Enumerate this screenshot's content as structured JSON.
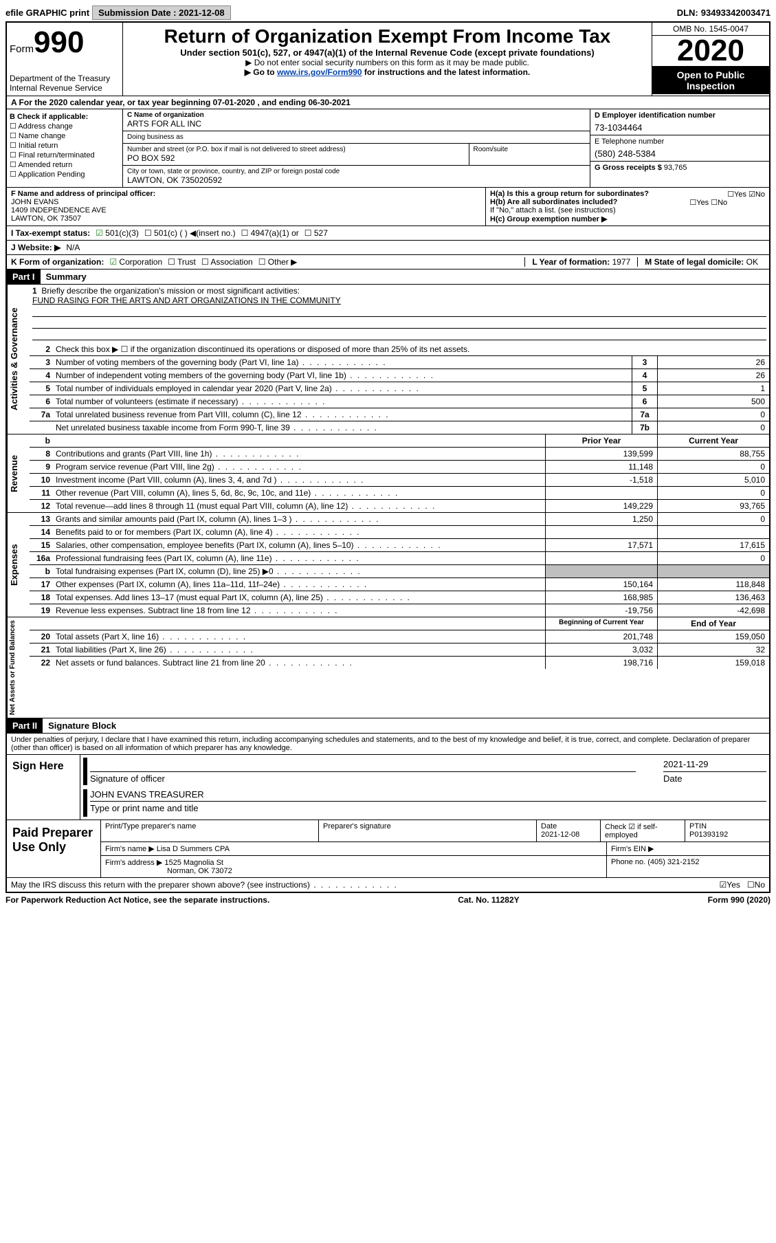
{
  "topbar": {
    "efile": "efile GRAPHIC print",
    "submission_label": "Submission Date :",
    "submission_date": "2021-12-08",
    "dln_label": "DLN:",
    "dln": "93493342003471"
  },
  "header": {
    "form_label": "Form",
    "form_number": "990",
    "dept1": "Department of the Treasury",
    "dept2": "Internal Revenue Service",
    "title": "Return of Organization Exempt From Income Tax",
    "subtitle": "Under section 501(c), 527, or 4947(a)(1) of the Internal Revenue Code (except private foundations)",
    "note1": "▶ Do not enter social security numbers on this form as it may be made public.",
    "note2_pre": "▶ Go to ",
    "note2_link": "www.irs.gov/Form990",
    "note2_post": " for instructions and the latest information.",
    "omb": "OMB No. 1545-0047",
    "year": "2020",
    "inspect1": "Open to Public",
    "inspect2": "Inspection"
  },
  "line_a": "A For the 2020 calendar year, or tax year beginning 07-01-2020    , and ending 06-30-2021",
  "box_b": {
    "label": "B Check if applicable:",
    "items": [
      "Address change",
      "Name change",
      "Initial return",
      "Final return/terminated",
      "Amended return",
      "Application Pending"
    ]
  },
  "box_c": {
    "name_label": "C Name of organization",
    "name": "ARTS FOR ALL INC",
    "dba_label": "Doing business as",
    "dba": "",
    "street_label": "Number and street (or P.O. box if mail is not delivered to street address)",
    "street": "PO BOX 592",
    "room_label": "Room/suite",
    "city_label": "City or town, state or province, country, and ZIP or foreign postal code",
    "city": "LAWTON, OK  735020592"
  },
  "box_d": {
    "ein_label": "D Employer identification number",
    "ein": "73-1034464",
    "phone_label": "E Telephone number",
    "phone": "(580) 248-5384",
    "gross_label": "G Gross receipts $",
    "gross": "93,765"
  },
  "box_f": {
    "label": "F Name and address of principal officer:",
    "name": "JOHN EVANS",
    "addr1": "1409 INDEPENDENCE AVE",
    "addr2": "LAWTON, OK  73507"
  },
  "box_h": {
    "a_label": "H(a)  Is this a group return for subordinates?",
    "a_yes": "☐Yes",
    "a_no": "☑No",
    "b_label": "H(b)  Are all subordinates included?",
    "b_yes": "☐Yes",
    "b_no": "☐No",
    "b_note": "If \"No,\" attach a list. (see instructions)",
    "c_label": "H(c)  Group exemption number ▶"
  },
  "row_i": {
    "label": "I    Tax-exempt status:",
    "opt1": "501(c)(3)",
    "opt2": "501(c) (  ) ◀(insert no.)",
    "opt3": "4947(a)(1) or",
    "opt4": "527"
  },
  "row_j": {
    "label": "J   Website: ▶",
    "value": "N/A"
  },
  "row_k": {
    "label": "K Form of organization:",
    "opts": [
      "Corporation",
      "Trust",
      "Association",
      "Other ▶"
    ],
    "l_label": "L Year of formation:",
    "l_val": "1977",
    "m_label": "M State of legal domicile:",
    "m_val": "OK"
  },
  "part1": {
    "header": "Part I",
    "title": "Summary"
  },
  "mission": {
    "num": "1",
    "label": "Briefly describe the organization's mission or most significant activities:",
    "text": "FUND RASING FOR THE ARTS AND ART ORGANIZATIONS IN THE COMMUNITY"
  },
  "governance_rows": [
    {
      "num": "2",
      "desc": "Check this box ▶ ☐  if the organization discontinued its operations or disposed of more than 25% of its net assets.",
      "box": "",
      "val": ""
    },
    {
      "num": "3",
      "desc": "Number of voting members of the governing body (Part VI, line 1a)",
      "box": "3",
      "val": "26"
    },
    {
      "num": "4",
      "desc": "Number of independent voting members of the governing body (Part VI, line 1b)",
      "box": "4",
      "val": "26"
    },
    {
      "num": "5",
      "desc": "Total number of individuals employed in calendar year 2020 (Part V, line 2a)",
      "box": "5",
      "val": "1"
    },
    {
      "num": "6",
      "desc": "Total number of volunteers (estimate if necessary)",
      "box": "6",
      "val": "500"
    },
    {
      "num": "7a",
      "desc": "Total unrelated business revenue from Part VIII, column (C), line 12",
      "box": "7a",
      "val": "0"
    },
    {
      "num": "",
      "desc": "Net unrelated business taxable income from Form 990-T, line 39",
      "box": "7b",
      "val": "0"
    }
  ],
  "revenue_header": {
    "num": "b",
    "prior": "Prior Year",
    "current": "Current Year"
  },
  "revenue_rows": [
    {
      "num": "8",
      "desc": "Contributions and grants (Part VIII, line 1h)",
      "prior": "139,599",
      "current": "88,755"
    },
    {
      "num": "9",
      "desc": "Program service revenue (Part VIII, line 2g)",
      "prior": "11,148",
      "current": "0"
    },
    {
      "num": "10",
      "desc": "Investment income (Part VIII, column (A), lines 3, 4, and 7d )",
      "prior": "-1,518",
      "current": "5,010"
    },
    {
      "num": "11",
      "desc": "Other revenue (Part VIII, column (A), lines 5, 6d, 8c, 9c, 10c, and 11e)",
      "prior": "",
      "current": "0"
    },
    {
      "num": "12",
      "desc": "Total revenue—add lines 8 through 11 (must equal Part VIII, column (A), line 12)",
      "prior": "149,229",
      "current": "93,765"
    }
  ],
  "expense_rows": [
    {
      "num": "13",
      "desc": "Grants and similar amounts paid (Part IX, column (A), lines 1–3 )",
      "prior": "1,250",
      "current": "0"
    },
    {
      "num": "14",
      "desc": "Benefits paid to or for members (Part IX, column (A), line 4)",
      "prior": "",
      "current": ""
    },
    {
      "num": "15",
      "desc": "Salaries, other compensation, employee benefits (Part IX, column (A), lines 5–10)",
      "prior": "17,571",
      "current": "17,615"
    },
    {
      "num": "16a",
      "desc": "Professional fundraising fees (Part IX, column (A), line 11e)",
      "prior": "",
      "current": "0"
    },
    {
      "num": "b",
      "desc": "Total fundraising expenses (Part IX, column (D), line 25) ▶0",
      "prior": "grey",
      "current": "grey"
    },
    {
      "num": "17",
      "desc": "Other expenses (Part IX, column (A), lines 11a–11d, 11f–24e)",
      "prior": "150,164",
      "current": "118,848"
    },
    {
      "num": "18",
      "desc": "Total expenses. Add lines 13–17 (must equal Part IX, column (A), line 25)",
      "prior": "168,985",
      "current": "136,463"
    },
    {
      "num": "19",
      "desc": "Revenue less expenses. Subtract line 18 from line 12",
      "prior": "-19,756",
      "current": "-42,698"
    }
  ],
  "netassets_header": {
    "prior": "Beginning of Current Year",
    "current": "End of Year"
  },
  "netassets_rows": [
    {
      "num": "20",
      "desc": "Total assets (Part X, line 16)",
      "prior": "201,748",
      "current": "159,050"
    },
    {
      "num": "21",
      "desc": "Total liabilities (Part X, line 26)",
      "prior": "3,032",
      "current": "32"
    },
    {
      "num": "22",
      "desc": "Net assets or fund balances. Subtract line 21 from line 20",
      "prior": "198,716",
      "current": "159,018"
    }
  ],
  "side_labels": {
    "governance": "Activities & Governance",
    "revenue": "Revenue",
    "expenses": "Expenses",
    "netassets": "Net Assets or Fund Balances"
  },
  "part2": {
    "header": "Part II",
    "title": "Signature Block",
    "penalty": "Under penalties of perjury, I declare that I have examined this return, including accompanying schedules and statements, and to the best of my knowledge and belief, it is true, correct, and complete. Declaration of preparer (other than officer) is based on all information of which preparer has any knowledge."
  },
  "sign": {
    "label": "Sign Here",
    "sig_label": "Signature of officer",
    "date": "2021-11-29",
    "date_label": "Date",
    "name": "JOHN EVANS TREASURER",
    "name_label": "Type or print name and title"
  },
  "preparer": {
    "label": "Paid Preparer Use Only",
    "print_label": "Print/Type preparer's name",
    "sig_label": "Preparer's signature",
    "date_label": "Date",
    "date": "2021-12-08",
    "check_label": "Check ☑ if self-employed",
    "ptin_label": "PTIN",
    "ptin": "P01393192",
    "firm_name_label": "Firm's name    ▶",
    "firm_name": "Lisa D Summers CPA",
    "firm_ein_label": "Firm's EIN ▶",
    "firm_addr_label": "Firm's address ▶",
    "firm_addr1": "1525 Magnolia St",
    "firm_addr2": "Norman, OK  73072",
    "phone_label": "Phone no.",
    "phone": "(405) 321-2152",
    "discuss": "May the IRS discuss this return with the preparer shown above? (see instructions)",
    "discuss_yes": "☑Yes",
    "discuss_no": "☐No"
  },
  "footer": {
    "left": "For Paperwork Reduction Act Notice, see the separate instructions.",
    "mid": "Cat. No. 11282Y",
    "right": "Form 990 (2020)"
  }
}
